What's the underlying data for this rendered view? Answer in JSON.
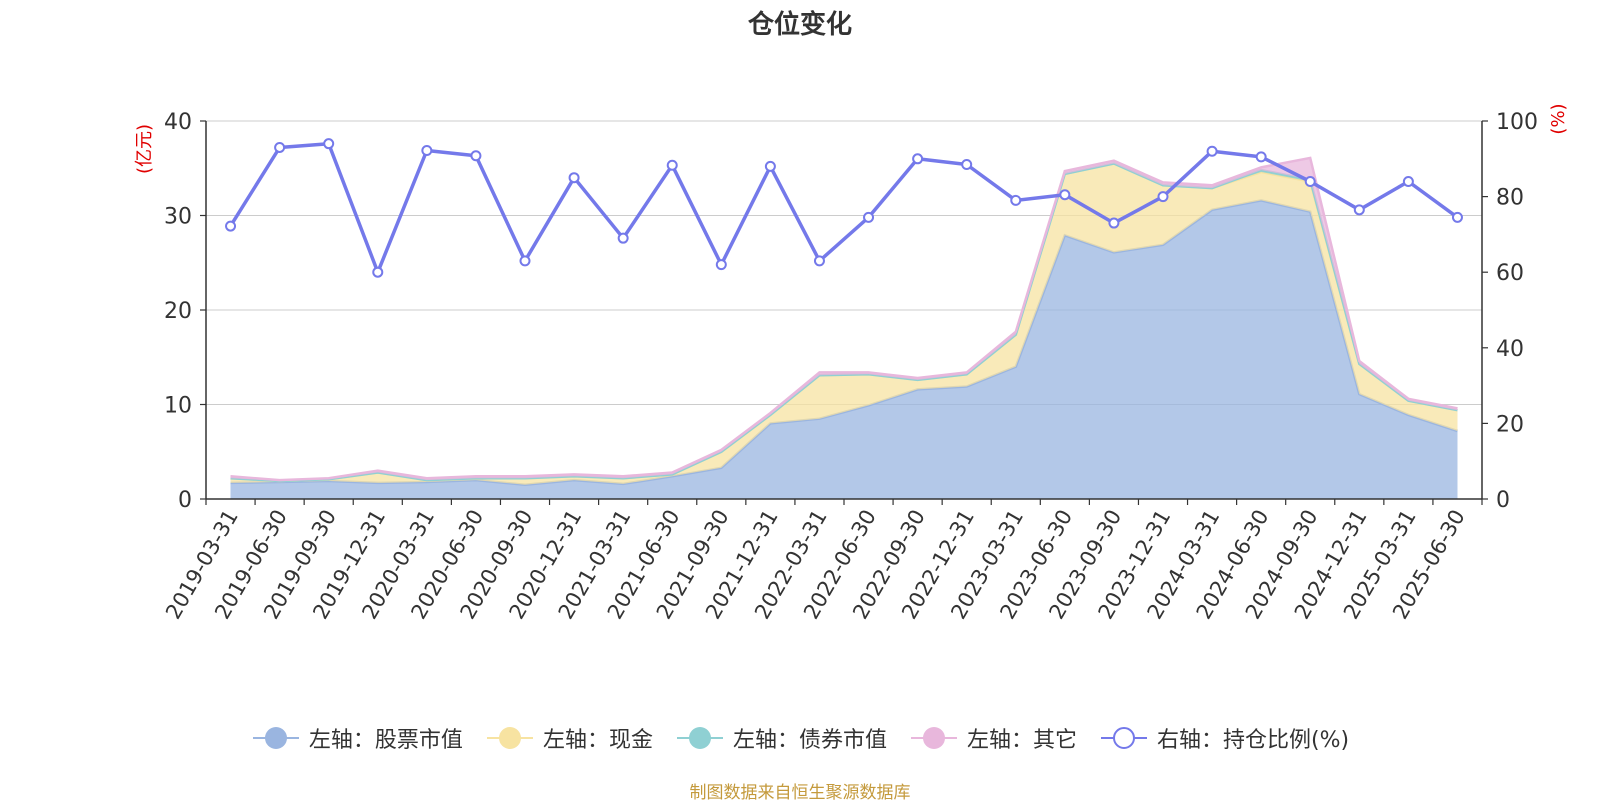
{
  "title": "仓位变化",
  "source_note": "制图数据来自恒生聚源数据库",
  "chart_data": {
    "type": "area",
    "title": "仓位变化",
    "categories": [
      "2019-03-31",
      "2019-06-30",
      "2019-09-30",
      "2019-12-31",
      "2020-03-31",
      "2020-06-30",
      "2020-09-30",
      "2020-12-31",
      "2021-03-31",
      "2021-06-30",
      "2021-09-30",
      "2021-12-31",
      "2022-03-31",
      "2022-06-30",
      "2022-09-30",
      "2022-12-31",
      "2023-03-31",
      "2023-06-30",
      "2023-09-30",
      "2023-12-31",
      "2024-03-31",
      "2024-06-30",
      "2024-09-30",
      "2024-12-31",
      "2025-03-31",
      "2025-06-30"
    ],
    "left_axis": {
      "label": "(亿元)",
      "ylim": [
        0,
        40
      ],
      "ticks": [
        0,
        10,
        20,
        30,
        40
      ]
    },
    "right_axis": {
      "label": "(%)",
      "ylim": [
        0,
        100
      ],
      "ticks": [
        0,
        20,
        40,
        60,
        80,
        100
      ]
    },
    "grid": true,
    "legend_position": "bottom",
    "series": [
      {
        "name": "左轴：股票市值",
        "axis": "left",
        "kind": "stacked-area",
        "color": "#9ab5e0",
        "values": [
          1.7,
          1.8,
          1.9,
          1.7,
          1.8,
          2.0,
          1.5,
          2.0,
          1.6,
          2.4,
          3.3,
          8.0,
          8.5,
          9.9,
          11.6,
          11.9,
          14.0,
          27.9,
          26.1,
          26.9,
          30.6,
          31.6,
          30.4,
          11.1,
          8.9,
          7.2
        ]
      },
      {
        "name": "左轴：现金",
        "axis": "left",
        "kind": "stacked-area",
        "color": "#f7e3a1",
        "values": [
          0.5,
          0.1,
          0.2,
          1.1,
          0.2,
          0.2,
          0.7,
          0.4,
          0.6,
          0.2,
          1.7,
          0.9,
          4.6,
          3.3,
          1.0,
          1.3,
          3.4,
          6.5,
          9.4,
          6.3,
          2.3,
          3.0,
          3.2,
          3.2,
          1.5,
          2.2
        ]
      },
      {
        "name": "左轴：债券市值",
        "axis": "left",
        "kind": "stacked-area",
        "color": "#8fd0d3",
        "values": [
          0,
          0,
          0,
          0,
          0,
          0,
          0,
          0,
          0,
          0,
          0,
          0,
          0,
          0,
          0,
          0,
          0,
          0,
          0,
          0,
          0,
          0.2,
          0.2,
          0,
          0,
          0
        ]
      },
      {
        "name": "左轴：其它",
        "axis": "left",
        "kind": "stacked-area",
        "color": "#e8b7dc",
        "values": [
          0.2,
          0.1,
          0.1,
          0.2,
          0.2,
          0.2,
          0.2,
          0.2,
          0.2,
          0.2,
          0.2,
          0.2,
          0.3,
          0.2,
          0.2,
          0.2,
          0.3,
          0.3,
          0.3,
          0.3,
          0.3,
          0.3,
          2.3,
          0.3,
          0.2,
          0.2
        ]
      },
      {
        "name": "右轴：持仓比例(%)",
        "axis": "right",
        "kind": "line",
        "color": "#7479ea",
        "values": [
          72.2,
          93.0,
          94.0,
          60.0,
          92.2,
          90.8,
          63.0,
          85.0,
          69.0,
          88.3,
          62.0,
          88.0,
          63.0,
          74.5,
          90.0,
          88.5,
          79.0,
          80.5,
          73.0,
          80.0,
          92.0,
          90.5,
          84.0,
          76.5,
          84.0,
          74.5
        ]
      }
    ]
  }
}
